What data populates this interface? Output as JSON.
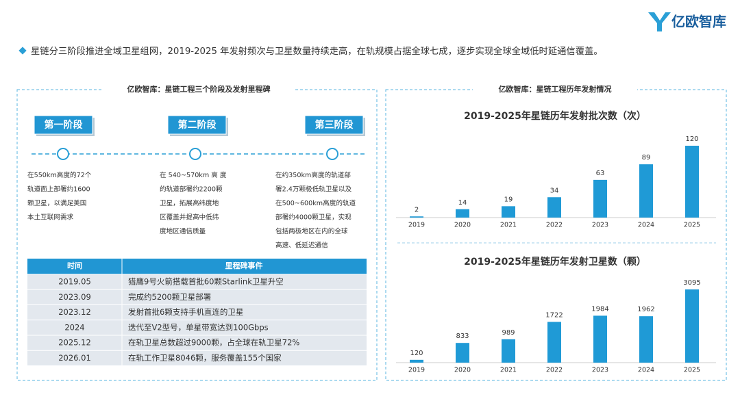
{
  "header": {
    "logo": "亿欧智库",
    "headline": "星链分三阶段推进全域卫星组网，2019-2025 年发射频次与卫星数量持续走高，在轨规模占据全球七成，逐步实现全球全域低时延通信覆盖。"
  },
  "left": {
    "title": "亿欧智库：星链工程三个阶段及发射里程碑",
    "stages": [
      {
        "label": "第一阶段",
        "lines": [
          "在550km高度的72个",
          "轨道面上部署约1600",
          "颗卫星，以满足美国",
          "本土互联网需求"
        ]
      },
      {
        "label": "第二阶段",
        "lines": [
          "在 540~570km 高 度",
          "的轨道部署约2200颗",
          "卫星，拓展高纬度地",
          "区覆盖并提高中低纬",
          "度地区通信质量"
        ]
      },
      {
        "label": "第三阶段",
        "lines": [
          "在约350km高度的轨道部",
          "署2.4万颗极低轨卫星以及",
          "在500~600km高度的轨道",
          "部署约4000颗卫星，实现",
          "包括两极地区在内的全球",
          "高速、低延迟通信"
        ]
      }
    ],
    "table": {
      "header": [
        "时间",
        "里程碑事件"
      ],
      "rows": [
        [
          "2019.05",
          "猎鹰9号火箭搭载首批60颗Starlink卫星升空"
        ],
        [
          "2023.09",
          "完成约5200颗卫星部署"
        ],
        [
          "2023.12",
          "发射首批6颗支持手机直连的卫星"
        ],
        [
          "2024",
          "迭代至V2型号，单星带宽达到100Gbps"
        ],
        [
          "2025.12",
          "在轨卫星总数超过9000颗，占全球在轨卫星72%"
        ],
        [
          "2026.01",
          "在轨工作卫星8046颗，服务覆盖155个国家"
        ]
      ]
    }
  },
  "right": {
    "title": "亿欧智库：星链工程历年发射情况"
  },
  "chart_data": [
    {
      "type": "bar",
      "title": "2019-2025年星链历年发射批次数（次）",
      "categories": [
        "2019",
        "2020",
        "2021",
        "2022",
        "2023",
        "2024",
        "2025"
      ],
      "values": [
        2,
        14,
        19,
        34,
        63,
        89,
        120
      ],
      "color": "#1f9ad6"
    },
    {
      "type": "bar",
      "title": "2019-2025年星链历年发射卫星数（颗）",
      "categories": [
        "2019",
        "2020",
        "2021",
        "2022",
        "2023",
        "2024",
        "2025"
      ],
      "values": [
        120,
        833,
        989,
        1722,
        1984,
        1962,
        3095
      ],
      "color": "#1f9ad6"
    }
  ]
}
